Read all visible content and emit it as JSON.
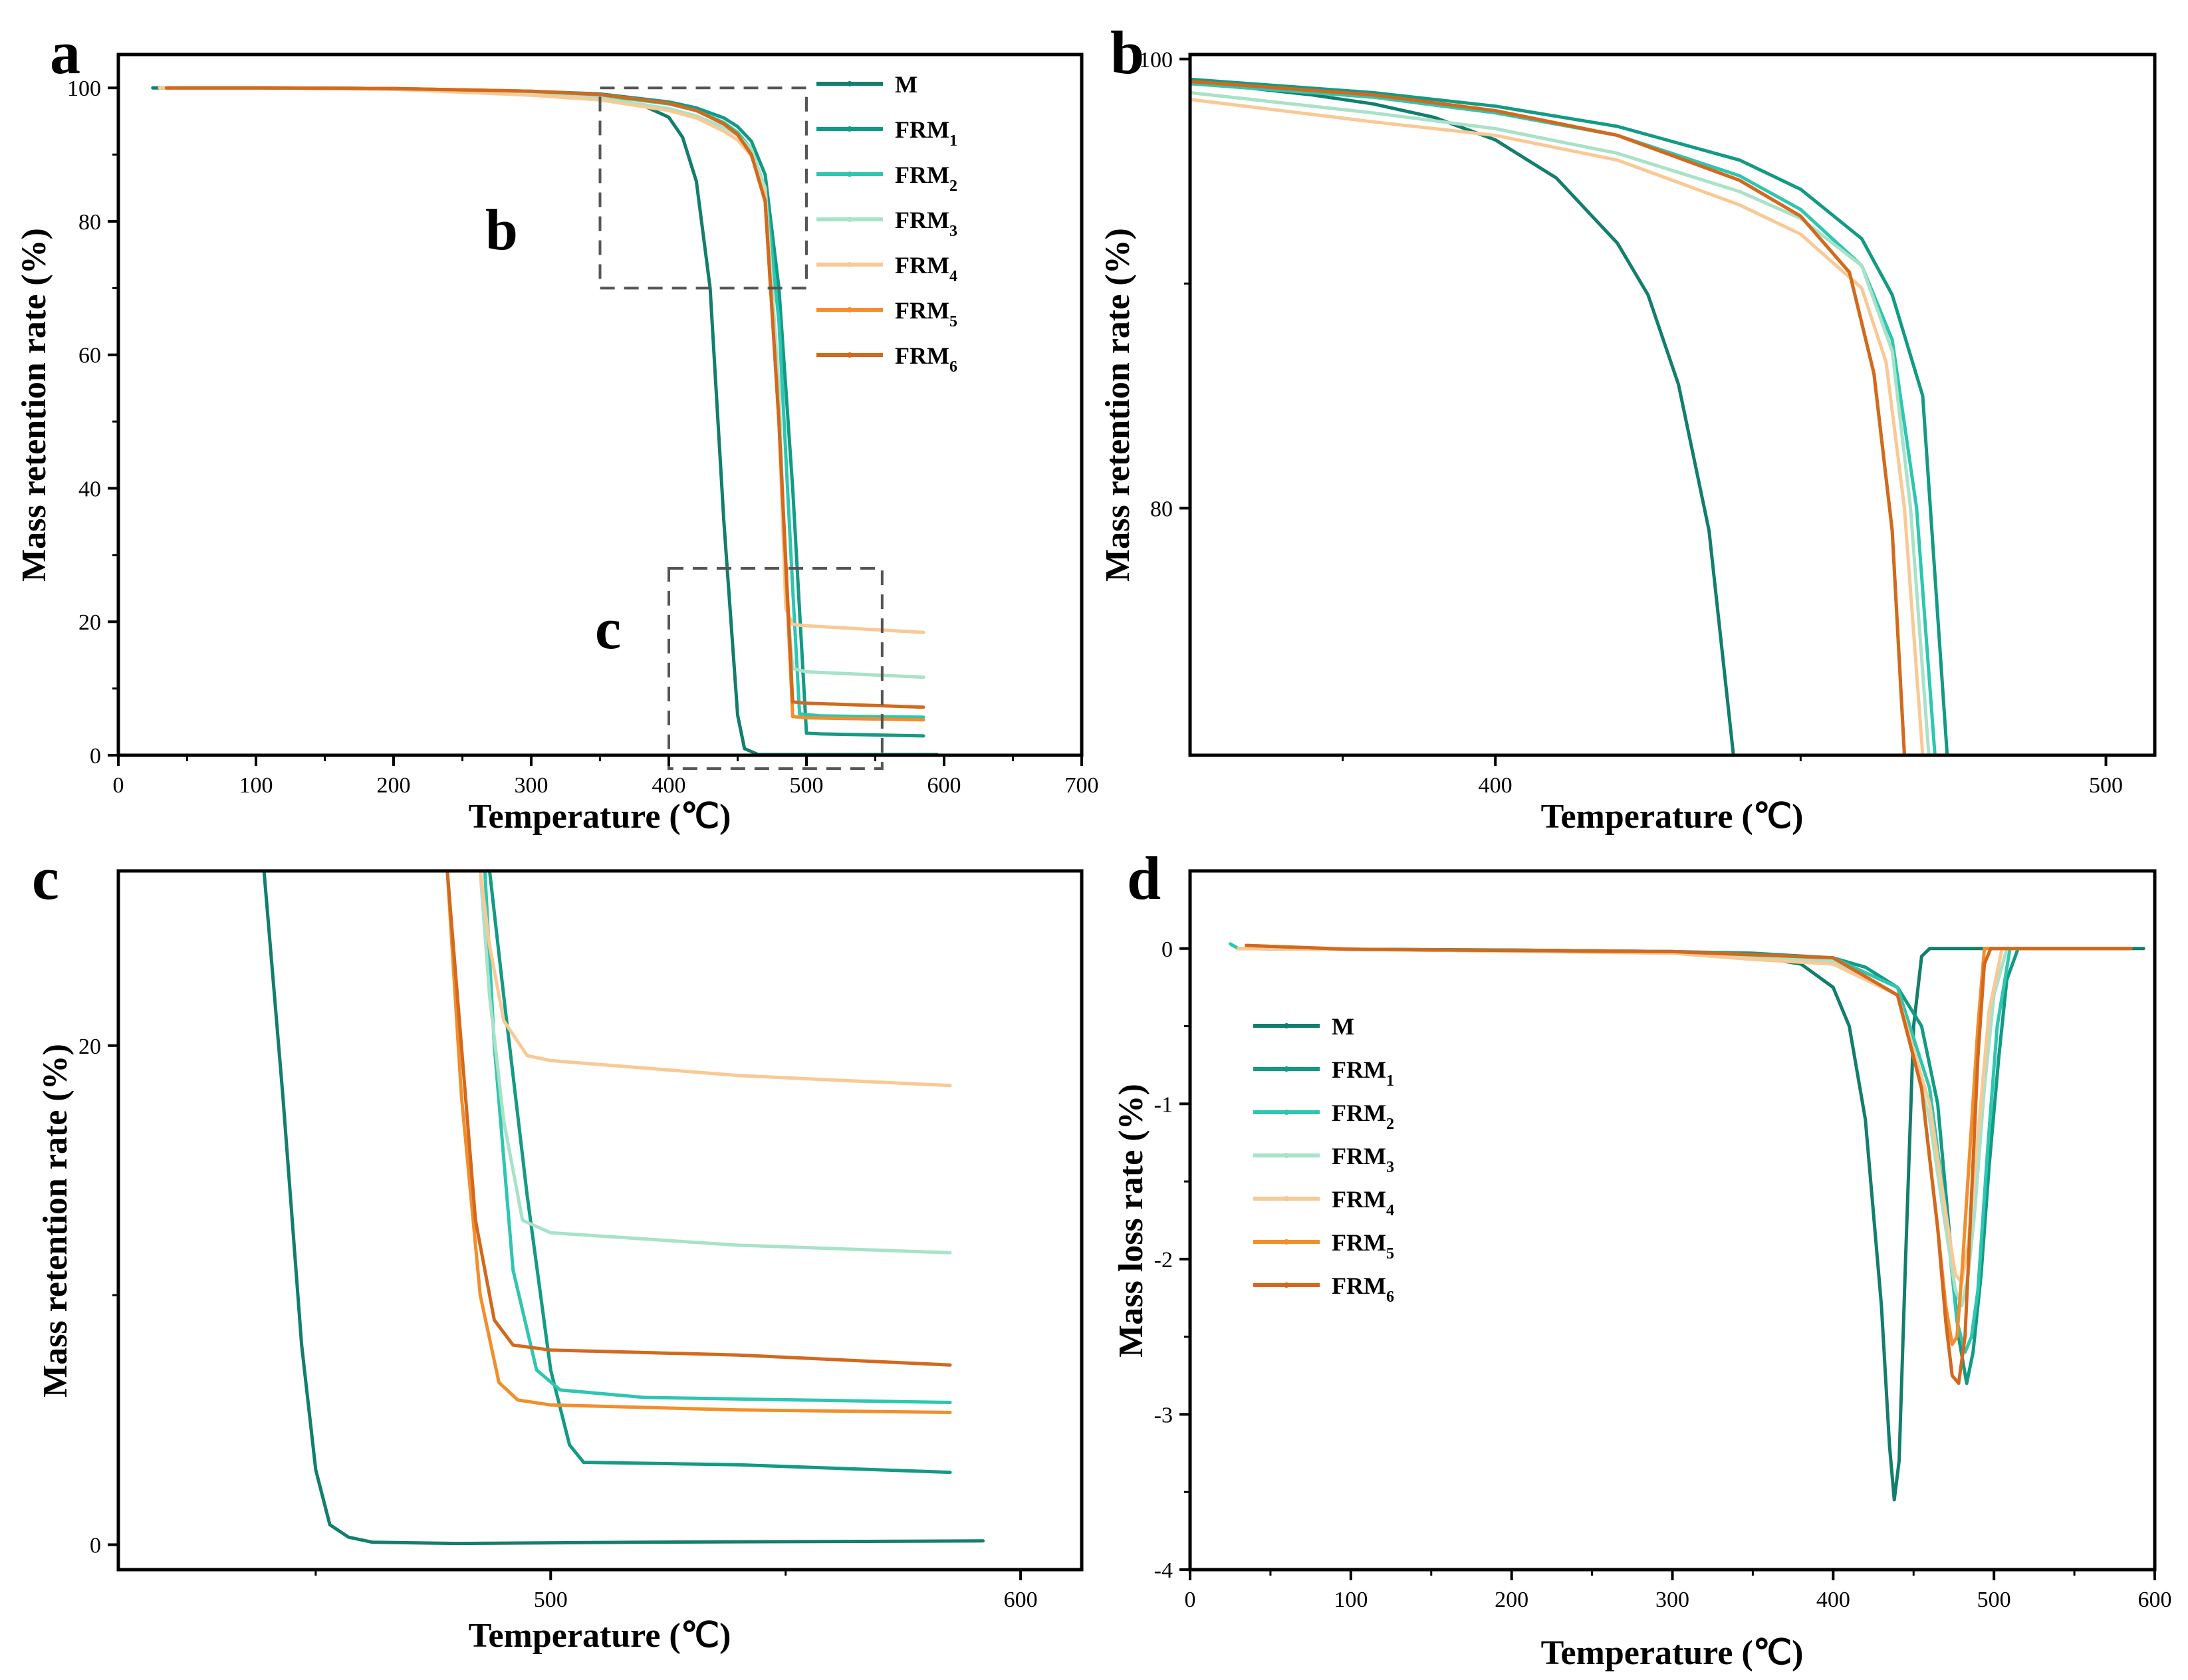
{
  "colors": {
    "M": "#137e6d",
    "FRM1": "#139a85",
    "FRM2": "#2ec6b0",
    "FRM3": "#a8e2c8",
    "FRM4": "#f9c995",
    "FRM5": "#f28e2b",
    "FRM6": "#d2691e"
  },
  "legend": [
    {
      "key": "M",
      "base": "M",
      "sub": ""
    },
    {
      "key": "FRM1",
      "base": "FRM",
      "sub": "1"
    },
    {
      "key": "FRM2",
      "base": "FRM",
      "sub": "2"
    },
    {
      "key": "FRM3",
      "base": "FRM",
      "sub": "3"
    },
    {
      "key": "FRM4",
      "base": "FRM",
      "sub": "4"
    },
    {
      "key": "FRM5",
      "base": "FRM",
      "sub": "5"
    },
    {
      "key": "FRM6",
      "base": "FRM",
      "sub": "6"
    }
  ],
  "insets": {
    "b": "b",
    "c": "c"
  },
  "chart_data": [
    {
      "panel": "a",
      "type": "line",
      "xlabel": "Temperature (℃)",
      "ylabel": "Mass retention rate (%)",
      "xlim": [
        0,
        700
      ],
      "ylim": [
        0,
        105
      ],
      "xticks": [
        0,
        100,
        200,
        300,
        400,
        500,
        600,
        700
      ],
      "yticks": [
        0,
        20,
        40,
        60,
        80,
        100
      ],
      "legend_position": "top-right",
      "zoom_boxes": [
        {
          "label": "b",
          "x": [
            350,
            500
          ],
          "y": [
            70,
            100
          ]
        },
        {
          "label": "c",
          "x": [
            400,
            555
          ],
          "y": [
            -2,
            28
          ]
        }
      ],
      "series": [
        {
          "name": "M",
          "x": [
            25,
            100,
            200,
            300,
            350,
            380,
            400,
            410,
            420,
            430,
            440,
            450,
            455,
            465,
            500,
            595
          ],
          "y": [
            100,
            100,
            99.9,
            99.3,
            98.6,
            97.5,
            95.6,
            92.6,
            86,
            70,
            35,
            6,
            1,
            0.1,
            0.1,
            0.1
          ]
        },
        {
          "name": "FRM1",
          "x": [
            30,
            100,
            200,
            300,
            350,
            400,
            420,
            440,
            450,
            460,
            470,
            480,
            490,
            500,
            510,
            585
          ],
          "y": [
            100,
            100,
            99.9,
            99.5,
            99.1,
            97.9,
            97,
            95.5,
            94.2,
            92,
            87,
            70,
            40,
            3.3,
            3.2,
            2.9
          ]
        },
        {
          "name": "FRM2",
          "x": [
            30,
            100,
            200,
            300,
            350,
            400,
            420,
            440,
            450,
            460,
            470,
            480,
            490,
            495,
            510,
            585
          ],
          "y": [
            100,
            100,
            99.9,
            99.4,
            98.9,
            97.6,
            96.6,
            94.8,
            93.3,
            90.8,
            85,
            65,
            25,
            6.2,
            5.9,
            5.7
          ]
        },
        {
          "name": "FRM3",
          "x": [
            30,
            100,
            200,
            300,
            350,
            400,
            420,
            440,
            450,
            460,
            470,
            480,
            485,
            490,
            500,
            585
          ],
          "y": [
            100,
            100,
            99.8,
            99.1,
            98.5,
            96.9,
            95.8,
            94.1,
            92.9,
            90.8,
            85,
            55,
            25,
            13,
            12.5,
            11.7
          ]
        },
        {
          "name": "FRM4",
          "x": [
            30,
            100,
            200,
            300,
            350,
            400,
            420,
            440,
            450,
            460,
            470,
            480,
            485,
            490,
            500,
            585
          ],
          "y": [
            100,
            100,
            99.8,
            98.9,
            98.2,
            96.6,
            95.5,
            93.5,
            92.2,
            89.8,
            84,
            50,
            22,
            19.6,
            19.4,
            18.4
          ]
        },
        {
          "name": "FRM5",
          "x": [
            35,
            100,
            200,
            300,
            350,
            400,
            420,
            440,
            450,
            460,
            470,
            480,
            490,
            500,
            585
          ],
          "y": [
            100,
            100,
            99.9,
            99.5,
            99,
            97.7,
            96.6,
            94.6,
            93,
            90,
            83,
            50,
            5.8,
            5.6,
            5.3
          ]
        },
        {
          "name": "FRM6",
          "x": [
            35,
            100,
            200,
            300,
            350,
            400,
            420,
            440,
            450,
            460,
            470,
            480,
            490,
            500,
            585
          ],
          "y": [
            100,
            100,
            99.9,
            99.5,
            99,
            97.7,
            96.6,
            94.6,
            93,
            90,
            83,
            50,
            8,
            7.8,
            7.2
          ]
        }
      ]
    },
    {
      "panel": "b",
      "type": "line",
      "xlabel": "Temperature (℃)",
      "ylabel": "Mass retention rate (%)",
      "xlim": [
        350,
        508
      ],
      "ylim": [
        69,
        100.2
      ],
      "xticks": [
        400,
        500
      ],
      "yticks": [
        80,
        100
      ],
      "series": [
        {
          "name": "M",
          "x": [
            350,
            370,
            380,
            390,
            400,
            410,
            420,
            425,
            430,
            435,
            439
          ],
          "y": [
            99,
            98.4,
            98,
            97.4,
            96.4,
            94.7,
            91.8,
            89.5,
            85.5,
            79,
            69
          ]
        },
        {
          "name": "FRM1",
          "x": [
            350,
            380,
            400,
            420,
            440,
            450,
            460,
            465,
            470,
            474
          ],
          "y": [
            99.1,
            98.5,
            97.9,
            97,
            95.5,
            94.2,
            92,
            89.5,
            85,
            69
          ]
        },
        {
          "name": "FRM2",
          "x": [
            350,
            380,
            400,
            420,
            440,
            450,
            460,
            465,
            469,
            472
          ],
          "y": [
            98.9,
            98.3,
            97.6,
            96.6,
            94.8,
            93.3,
            90.8,
            87.5,
            80,
            69
          ]
        },
        {
          "name": "FRM3",
          "x": [
            350,
            380,
            400,
            420,
            440,
            450,
            460,
            465,
            468,
            471
          ],
          "y": [
            98.5,
            97.6,
            96.9,
            95.8,
            94.1,
            92.9,
            90.8,
            87,
            80,
            69
          ]
        },
        {
          "name": "FRM4",
          "x": [
            350,
            380,
            400,
            420,
            440,
            450,
            460,
            464,
            467,
            470
          ],
          "y": [
            98.2,
            97.2,
            96.6,
            95.5,
            93.5,
            92.2,
            89.8,
            86.5,
            80,
            69
          ]
        },
        {
          "name": "FRM5",
          "x": [
            350,
            380,
            400,
            420,
            440,
            450,
            458,
            462,
            465,
            467
          ],
          "y": [
            99,
            98.4,
            97.7,
            96.6,
            94.6,
            93,
            90.5,
            86,
            79,
            69
          ]
        },
        {
          "name": "FRM6",
          "x": [
            350,
            380,
            400,
            420,
            440,
            450,
            458,
            462,
            465,
            467
          ],
          "y": [
            99,
            98.4,
            97.7,
            96.6,
            94.6,
            93,
            90.5,
            86,
            79,
            69
          ]
        }
      ]
    },
    {
      "panel": "c",
      "type": "line",
      "xlabel": "Temperature (℃)",
      "ylabel": "Mass retention rate (%)",
      "xlim": [
        408,
        613
      ],
      "ylim": [
        -1,
        27
      ],
      "xticks": [
        500,
        600
      ],
      "yticks": [
        0,
        20
      ],
      "series": [
        {
          "name": "M",
          "x": [
            439,
            443,
            447,
            450,
            453,
            457,
            462,
            480,
            520,
            592
          ],
          "y": [
            27,
            18,
            8,
            3,
            0.8,
            0.3,
            0.1,
            0.05,
            0.1,
            0.15
          ]
        },
        {
          "name": "FRM1",
          "x": [
            487,
            490,
            495,
            500,
            504,
            507,
            540,
            585
          ],
          "y": [
            27,
            22,
            14,
            7,
            4,
            3.3,
            3.2,
            2.9
          ]
        },
        {
          "name": "FRM2",
          "x": [
            486,
            488,
            492,
            497,
            502,
            520,
            585
          ],
          "y": [
            27,
            20,
            11,
            7,
            6.2,
            5.9,
            5.7
          ]
        },
        {
          "name": "FRM3",
          "x": [
            485,
            487,
            490,
            494,
            500,
            540,
            585
          ],
          "y": [
            27,
            22,
            17,
            13,
            12.5,
            12,
            11.7
          ]
        },
        {
          "name": "FRM4",
          "x": [
            485,
            487,
            490,
            495,
            500,
            540,
            585
          ],
          "y": [
            27,
            24,
            21,
            19.6,
            19.4,
            18.8,
            18.4
          ]
        },
        {
          "name": "FRM5",
          "x": [
            478,
            481,
            485,
            489,
            493,
            500,
            540,
            585
          ],
          "y": [
            27,
            18,
            10,
            6.5,
            5.8,
            5.6,
            5.4,
            5.3
          ]
        },
        {
          "name": "FRM6",
          "x": [
            478,
            481,
            484,
            488,
            492,
            500,
            540,
            585
          ],
          "y": [
            27,
            20,
            13,
            9,
            8,
            7.8,
            7.6,
            7.2
          ]
        }
      ]
    },
    {
      "panel": "d",
      "type": "line",
      "xlabel": "Temperature (℃)",
      "ylabel": "Mass loss rate (%)",
      "xlim": [
        0,
        600
      ],
      "ylim": [
        -4,
        0.5
      ],
      "xticks": [
        0,
        100,
        200,
        300,
        400,
        500,
        600
      ],
      "yticks": [
        0,
        -1,
        -2,
        -3,
        -4
      ],
      "legend_position": "left",
      "series": [
        {
          "name": "M",
          "x": [
            30,
            100,
            200,
            300,
            350,
            380,
            400,
            410,
            420,
            430,
            435,
            438,
            441,
            445,
            450,
            455,
            460,
            470,
            500,
            593
          ],
          "y": [
            0,
            -0.005,
            -0.01,
            -0.02,
            -0.05,
            -0.1,
            -0.25,
            -0.5,
            -1.1,
            -2.3,
            -3.2,
            -3.55,
            -3.3,
            -2,
            -0.5,
            -0.05,
            0,
            0,
            0,
            0
          ]
        },
        {
          "name": "FRM1",
          "x": [
            30,
            100,
            200,
            300,
            350,
            400,
            420,
            440,
            455,
            465,
            472,
            478,
            483,
            487,
            492,
            497,
            503,
            508,
            515,
            585
          ],
          "y": [
            0,
            -0.005,
            -0.01,
            -0.02,
            -0.03,
            -0.06,
            -0.12,
            -0.25,
            -0.5,
            -1,
            -1.8,
            -2.5,
            -2.8,
            -2.6,
            -2.1,
            -1.4,
            -0.7,
            -0.2,
            0,
            0
          ]
        },
        {
          "name": "FRM2",
          "x": [
            25,
            30,
            100,
            300,
            400,
            440,
            460,
            470,
            477,
            482,
            486,
            490,
            496,
            502,
            510,
            585
          ],
          "y": [
            0.03,
            0,
            -0.005,
            -0.02,
            -0.06,
            -0.25,
            -0.9,
            -1.7,
            -2.4,
            -2.6,
            -2.5,
            -2.2,
            -1.3,
            -0.5,
            0,
            0
          ]
        },
        {
          "name": "FRM3",
          "x": [
            30,
            100,
            300,
            400,
            440,
            460,
            470,
            476,
            480,
            484,
            488,
            494,
            500,
            508,
            585
          ],
          "y": [
            0,
            -0.005,
            -0.03,
            -0.08,
            -0.3,
            -1.1,
            -1.8,
            -2.2,
            -2.3,
            -2.1,
            -1.7,
            -0.9,
            -0.3,
            0,
            0
          ]
        },
        {
          "name": "FRM4",
          "x": [
            30,
            100,
            300,
            350,
            400,
            440,
            460,
            470,
            476,
            480,
            484,
            490,
            497,
            505,
            585
          ],
          "y": [
            0,
            -0.005,
            -0.03,
            -0.07,
            -0.1,
            -0.3,
            -1,
            -1.7,
            -2.1,
            -2.15,
            -1.9,
            -1.2,
            -0.4,
            0,
            0
          ]
        },
        {
          "name": "FRM5",
          "x": [
            35,
            100,
            300,
            400,
            440,
            455,
            465,
            470,
            474,
            477,
            480,
            485,
            490,
            494,
            498,
            585
          ],
          "y": [
            0.02,
            -0.005,
            -0.02,
            -0.06,
            -0.3,
            -0.9,
            -1.8,
            -2.3,
            -2.55,
            -2.5,
            -2.1,
            -1.3,
            -0.5,
            0,
            0,
            0
          ]
        },
        {
          "name": "FRM6",
          "x": [
            35,
            100,
            300,
            400,
            440,
            455,
            465,
            470,
            474,
            478,
            482,
            486,
            490,
            494,
            498,
            585
          ],
          "y": [
            0.02,
            -0.005,
            -0.02,
            -0.06,
            -0.3,
            -0.9,
            -1.8,
            -2.4,
            -2.75,
            -2.8,
            -2.5,
            -1.6,
            -0.7,
            -0.1,
            0,
            0
          ]
        }
      ]
    }
  ]
}
